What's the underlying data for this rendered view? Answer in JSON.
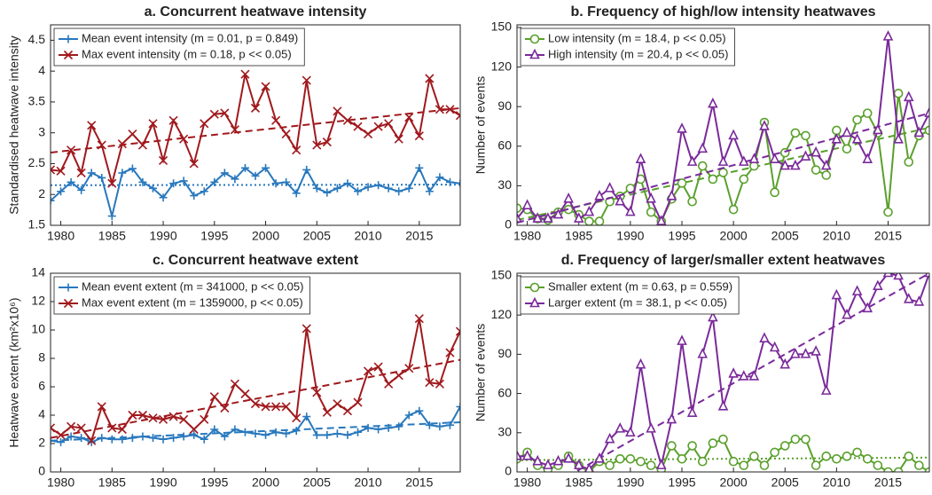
{
  "chart_data": [
    {
      "type": "line",
      "title": "a. Concurrent heatwave intensity",
      "ylabel": "Standardised heatwave intensity",
      "x": [
        1979,
        1980,
        1981,
        1982,
        1983,
        1984,
        1985,
        1986,
        1987,
        1988,
        1989,
        1990,
        1991,
        1992,
        1993,
        1994,
        1995,
        1996,
        1997,
        1998,
        1999,
        2000,
        2001,
        2002,
        2003,
        2004,
        2005,
        2006,
        2007,
        2008,
        2009,
        2010,
        2011,
        2012,
        2013,
        2014,
        2015,
        2016,
        2017,
        2018,
        2019
      ],
      "xlim": [
        1979,
        2019
      ],
      "xticks": [
        1980,
        1985,
        1990,
        1995,
        2000,
        2005,
        2010,
        2015
      ],
      "ylim": [
        1.5,
        4.75
      ],
      "yticks": [
        1.5,
        2,
        2.5,
        3,
        3.5,
        4,
        4.5
      ],
      "series": [
        {
          "name": "Mean event intensity (m = 0.01, p = 0.849)",
          "color": "#2878bd",
          "marker": "plus",
          "trend_style": "dotted",
          "trend": [
            2.15,
            2.16
          ],
          "values": [
            1.9,
            2.05,
            2.2,
            2.07,
            2.35,
            2.27,
            1.65,
            2.35,
            2.42,
            2.2,
            2.1,
            1.95,
            2.18,
            2.22,
            1.98,
            2.05,
            2.2,
            2.35,
            2.25,
            2.43,
            2.3,
            2.43,
            2.18,
            2.2,
            2.02,
            2.4,
            2.1,
            2.03,
            2.1,
            2.18,
            2.05,
            2.12,
            2.15,
            2.1,
            2.05,
            2.1,
            2.43,
            2.05,
            2.28,
            2.2,
            2.18
          ]
        },
        {
          "name": "Max event intensity (m = 0.18, p << 0.05)",
          "color": "#a0191d",
          "marker": "cross",
          "trend_style": "dashed",
          "trend": [
            2.68,
            3.4
          ],
          "values": [
            2.4,
            2.38,
            2.72,
            2.35,
            3.12,
            2.8,
            2.18,
            2.82,
            2.98,
            2.8,
            3.15,
            2.55,
            3.2,
            2.9,
            2.5,
            3.15,
            3.3,
            3.32,
            3.05,
            3.95,
            3.4,
            3.75,
            3.2,
            2.98,
            2.72,
            3.85,
            2.8,
            2.85,
            3.35,
            3.2,
            3.1,
            2.98,
            3.1,
            3.15,
            2.9,
            3.25,
            2.95,
            3.88,
            3.38,
            3.38,
            3.28
          ]
        }
      ]
    },
    {
      "type": "line",
      "title": "b. Frequency of high/low intensity heatwaves",
      "ylabel": "Number of events",
      "x": [
        1979,
        1980,
        1981,
        1982,
        1983,
        1984,
        1985,
        1986,
        1987,
        1988,
        1989,
        1990,
        1991,
        1992,
        1993,
        1994,
        1995,
        1996,
        1997,
        1998,
        1999,
        2000,
        2001,
        2002,
        2003,
        2004,
        2005,
        2006,
        2007,
        2008,
        2009,
        2010,
        2011,
        2012,
        2013,
        2014,
        2015,
        2016,
        2017,
        2018,
        2019
      ],
      "xlim": [
        1979,
        2019
      ],
      "xticks": [
        1980,
        1985,
        1990,
        1995,
        2000,
        2005,
        2010,
        2015
      ],
      "ylim": [
        0,
        152
      ],
      "yticks": [
        0,
        30,
        60,
        90,
        120,
        150
      ],
      "series": [
        {
          "name": "Low intensity (m = 18.4, p << 0.05)",
          "color": "#5aa02c",
          "marker": "circle",
          "trend_style": "dashed",
          "trend": [
            4,
            74
          ],
          "values": [
            13,
            12,
            5,
            4,
            10,
            12,
            8,
            3,
            3,
            18,
            22,
            28,
            35,
            10,
            3,
            20,
            32,
            18,
            45,
            35,
            40,
            12,
            35,
            45,
            78,
            25,
            55,
            70,
            68,
            42,
            38,
            72,
            58,
            80,
            85,
            70,
            10,
            100,
            48,
            68,
            72
          ]
        },
        {
          "name": "High intensity (m = 20.4, p << 0.05)",
          "color": "#7a2a9a",
          "marker": "triangle",
          "trend_style": "dashed",
          "trend": [
            2,
            85
          ],
          "values": [
            5,
            15,
            5,
            5,
            8,
            20,
            5,
            10,
            22,
            28,
            18,
            10,
            50,
            20,
            3,
            22,
            73,
            48,
            58,
            92,
            48,
            68,
            48,
            50,
            75,
            50,
            45,
            45,
            52,
            55,
            45,
            65,
            70,
            65,
            50,
            72,
            143,
            65,
            97,
            70,
            85
          ]
        }
      ]
    },
    {
      "type": "line",
      "title": "c. Concurrent heatwave extent",
      "ylabel": "Heatwave extent (km²x10⁶)",
      "x": [
        1979,
        1980,
        1981,
        1982,
        1983,
        1984,
        1985,
        1986,
        1987,
        1988,
        1989,
        1990,
        1991,
        1992,
        1993,
        1994,
        1995,
        1996,
        1997,
        1998,
        1999,
        2000,
        2001,
        2002,
        2003,
        2004,
        2005,
        2006,
        2007,
        2008,
        2009,
        2010,
        2011,
        2012,
        2013,
        2014,
        2015,
        2016,
        2017,
        2018,
        2019
      ],
      "xlim": [
        1979,
        2019
      ],
      "xticks": [
        1980,
        1985,
        1990,
        1995,
        2000,
        2005,
        2010,
        2015
      ],
      "ylim": [
        0,
        14
      ],
      "yticks": [
        0,
        2,
        4,
        6,
        8,
        10,
        12,
        14
      ],
      "series": [
        {
          "name": "Mean event extent (m = 341000, p << 0.05)",
          "color": "#2878bd",
          "marker": "plus",
          "trend_style": "dashed",
          "trend": [
            2.2,
            3.5
          ],
          "values": [
            2.2,
            2.1,
            2.5,
            2.4,
            2.1,
            2.4,
            2.3,
            2.3,
            2.4,
            2.5,
            2.4,
            2.3,
            2.4,
            2.5,
            2.6,
            2.3,
            3.0,
            2.5,
            3.0,
            2.8,
            2.7,
            2.6,
            2.8,
            2.7,
            2.9,
            3.9,
            2.6,
            2.6,
            2.7,
            2.6,
            2.8,
            3.1,
            3.0,
            3.1,
            3.2,
            4.0,
            4.3,
            3.3,
            3.2,
            3.3,
            4.6
          ]
        },
        {
          "name": "Max event extent (m = 1359000, p << 0.05)",
          "color": "#a0191d",
          "marker": "cross",
          "trend_style": "dashed",
          "trend": [
            2.4,
            7.9
          ],
          "values": [
            3.1,
            2.6,
            3.2,
            3.1,
            2.2,
            4.6,
            3.1,
            3.0,
            4.0,
            4.0,
            3.8,
            3.7,
            3.9,
            3.7,
            3.0,
            3.7,
            5.3,
            4.5,
            6.2,
            5.5,
            4.8,
            4.6,
            4.6,
            4.6,
            3.8,
            10.1,
            5.6,
            4.2,
            4.8,
            4.3,
            4.9,
            7.1,
            7.4,
            6.2,
            6.8,
            7.3,
            10.8,
            6.3,
            6.2,
            8.4,
            9.9
          ]
        }
      ]
    },
    {
      "type": "line",
      "title": "d. Frequency of larger/smaller extent heatwaves",
      "ylabel": "Number of events",
      "x": [
        1979,
        1980,
        1981,
        1982,
        1983,
        1984,
        1985,
        1986,
        1987,
        1988,
        1989,
        1990,
        1991,
        1992,
        1993,
        1994,
        1995,
        1996,
        1997,
        1998,
        1999,
        2000,
        2001,
        2002,
        2003,
        2004,
        2005,
        2006,
        2007,
        2008,
        2009,
        2010,
        2011,
        2012,
        2013,
        2014,
        2015,
        2016,
        2017,
        2018,
        2019
      ],
      "xlim": [
        1979,
        2019
      ],
      "xticks": [
        1980,
        1985,
        1990,
        1995,
        2000,
        2005,
        2010,
        2015
      ],
      "ylim": [
        0,
        152
      ],
      "yticks": [
        0,
        30,
        60,
        90,
        120,
        150
      ],
      "series": [
        {
          "name": "Smaller extent (m = 0.63, p = 0.559)",
          "color": "#5aa02c",
          "marker": "circle",
          "trend_style": "dotted",
          "trend": [
            9,
            11
          ],
          "values": [
            10,
            15,
            5,
            2,
            5,
            12,
            5,
            0,
            8,
            5,
            10,
            10,
            8,
            5,
            2,
            20,
            10,
            20,
            8,
            22,
            25,
            8,
            5,
            12,
            5,
            15,
            20,
            25,
            25,
            5,
            12,
            10,
            12,
            15,
            10,
            5,
            0,
            0,
            12,
            5,
            0
          ]
        },
        {
          "name": "Larger extent (m = 38.1, p << 0.05)",
          "color": "#7a2a9a",
          "marker": "triangle",
          "trend_style": "dashed",
          "trend": [
            -25,
            152
          ],
          "values": [
            12,
            12,
            8,
            5,
            8,
            10,
            5,
            2,
            10,
            25,
            33,
            30,
            82,
            33,
            5,
            40,
            100,
            45,
            90,
            118,
            50,
            75,
            73,
            73,
            102,
            95,
            82,
            90,
            90,
            92,
            62,
            135,
            120,
            138,
            125,
            142,
            152,
            150,
            132,
            130,
            152
          ]
        }
      ]
    }
  ]
}
